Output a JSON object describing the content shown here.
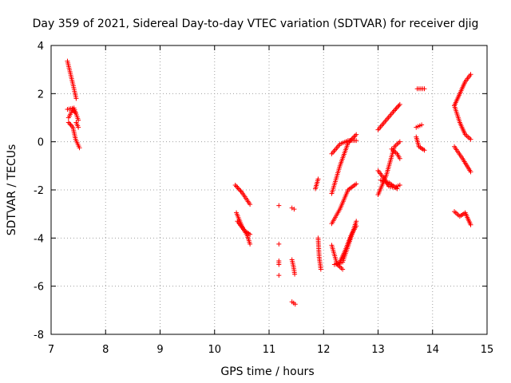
{
  "chart_data": {
    "type": "scatter",
    "title": "Day 359 of 2021, Sidereal Day-to-day VTEC variation (SDTVAR) for receiver djig",
    "xlabel": "GPS time / hours",
    "ylabel": "SDTVAR / TECUs",
    "xlim": [
      7,
      15
    ],
    "ylim": [
      -8,
      4
    ],
    "xticks": [
      7,
      8,
      9,
      10,
      11,
      12,
      13,
      14,
      15
    ],
    "yticks": [
      -8,
      -6,
      -4,
      -2,
      0,
      2,
      4
    ],
    "grid": true,
    "marker": "plus",
    "color": "#ff0000",
    "segments": [
      [
        [
          7.3,
          3.35
        ],
        [
          7.4,
          2.4
        ],
        [
          7.46,
          1.8
        ]
      ],
      [
        [
          7.3,
          1.35
        ],
        [
          7.42,
          1.4
        ],
        [
          7.5,
          0.9
        ]
      ],
      [
        [
          7.32,
          1.0
        ],
        [
          7.4,
          1.35
        ],
        [
          7.45,
          1.2
        ]
      ],
      [
        [
          7.32,
          0.8
        ],
        [
          7.4,
          0.6
        ],
        [
          7.45,
          0.1
        ],
        [
          7.52,
          -0.25
        ]
      ],
      [
        [
          7.46,
          0.8
        ],
        [
          7.5,
          0.6
        ]
      ],
      [
        [
          10.38,
          -1.8
        ],
        [
          10.5,
          -2.1
        ],
        [
          10.65,
          -2.6
        ]
      ],
      [
        [
          10.4,
          -2.95
        ],
        [
          10.5,
          -3.5
        ],
        [
          10.6,
          -3.9
        ],
        [
          10.65,
          -4.25
        ]
      ],
      [
        [
          10.42,
          -3.3
        ],
        [
          10.55,
          -3.7
        ],
        [
          10.65,
          -3.85
        ]
      ],
      [
        [
          11.18,
          -2.65
        ]
      ],
      [
        [
          11.18,
          -4.25
        ]
      ],
      [
        [
          11.18,
          -4.95
        ],
        [
          11.18,
          -5.1
        ]
      ],
      [
        [
          11.18,
          -5.55
        ]
      ],
      [
        [
          11.42,
          -2.75
        ],
        [
          11.46,
          -2.8
        ]
      ],
      [
        [
          11.42,
          -4.9
        ],
        [
          11.45,
          -5.2
        ],
        [
          11.47,
          -5.5
        ]
      ],
      [
        [
          11.42,
          -6.65
        ],
        [
          11.48,
          -6.75
        ]
      ],
      [
        [
          11.85,
          -1.95
        ],
        [
          11.9,
          -1.55
        ]
      ],
      [
        [
          11.9,
          -4.0
        ],
        [
          11.92,
          -4.8
        ],
        [
          11.95,
          -5.3
        ]
      ],
      [
        [
          12.15,
          -2.15
        ],
        [
          12.3,
          -1.0
        ],
        [
          12.45,
          -0.05
        ],
        [
          12.6,
          0.3
        ]
      ],
      [
        [
          12.15,
          -0.5
        ],
        [
          12.3,
          -0.1
        ],
        [
          12.45,
          0.05
        ],
        [
          12.6,
          0.05
        ]
      ],
      [
        [
          12.15,
          -3.4
        ],
        [
          12.3,
          -2.8
        ],
        [
          12.45,
          -2.0
        ],
        [
          12.6,
          -1.75
        ]
      ],
      [
        [
          12.15,
          -4.3
        ],
        [
          12.25,
          -5.1
        ],
        [
          12.35,
          -5.3
        ]
      ],
      [
        [
          12.2,
          -5.1
        ],
        [
          12.35,
          -5.0
        ],
        [
          12.5,
          -4.0
        ],
        [
          12.6,
          -3.3
        ]
      ],
      [
        [
          12.3,
          -5.0
        ],
        [
          12.4,
          -4.5
        ],
        [
          12.5,
          -3.9
        ],
        [
          12.6,
          -3.5
        ]
      ],
      [
        [
          13.0,
          -2.2
        ],
        [
          13.15,
          -1.4
        ],
        [
          13.3,
          -0.2
        ],
        [
          13.4,
          0.0
        ]
      ],
      [
        [
          13.0,
          -1.2
        ],
        [
          13.1,
          -1.5
        ],
        [
          13.2,
          -1.85
        ],
        [
          13.3,
          -1.9
        ],
        [
          13.4,
          -1.8
        ]
      ],
      [
        [
          13.0,
          0.5
        ],
        [
          13.15,
          0.9
        ],
        [
          13.3,
          1.3
        ],
        [
          13.4,
          1.55
        ]
      ],
      [
        [
          13.05,
          -1.6
        ],
        [
          13.2,
          -1.7
        ],
        [
          13.35,
          -1.95
        ]
      ],
      [
        [
          13.25,
          -0.3
        ],
        [
          13.35,
          -0.5
        ],
        [
          13.4,
          -0.7
        ]
      ],
      [
        [
          13.7,
          0.6
        ],
        [
          13.8,
          0.7
        ]
      ],
      [
        [
          13.7,
          0.2
        ],
        [
          13.75,
          -0.2
        ],
        [
          13.85,
          -0.35
        ]
      ],
      [
        [
          13.72,
          2.2
        ],
        [
          13.85,
          2.2
        ]
      ],
      [
        [
          14.4,
          1.5
        ],
        [
          14.5,
          0.8
        ],
        [
          14.6,
          0.3
        ],
        [
          14.7,
          0.1
        ]
      ],
      [
        [
          14.4,
          1.5
        ],
        [
          14.5,
          2.0
        ],
        [
          14.6,
          2.5
        ],
        [
          14.7,
          2.8
        ]
      ],
      [
        [
          14.4,
          -0.2
        ],
        [
          14.55,
          -0.7
        ],
        [
          14.7,
          -1.25
        ]
      ],
      [
        [
          14.4,
          -2.9
        ],
        [
          14.5,
          -3.1
        ],
        [
          14.6,
          -2.95
        ],
        [
          14.7,
          -3.45
        ]
      ]
    ]
  }
}
